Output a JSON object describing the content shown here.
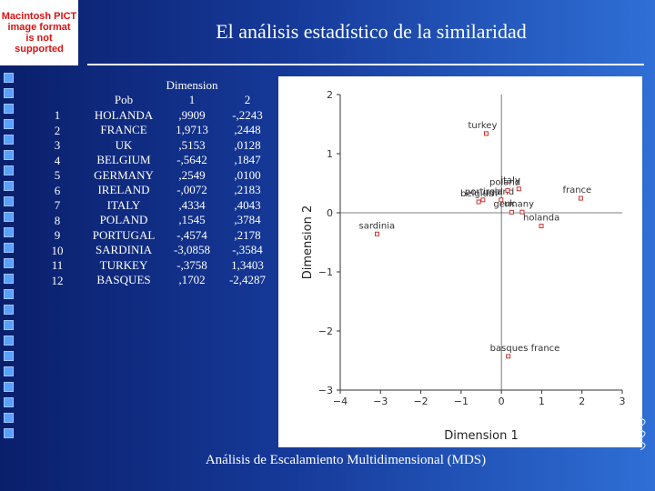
{
  "placeholder": {
    "line1": "Macintosh PICT",
    "line2": "image format",
    "line3": "is not supported"
  },
  "title": "El análisis estadístico de la similaridad",
  "table": {
    "dimension_header": "Dimension",
    "col_pob": "Pob",
    "col_d1": "1",
    "col_d2": "2",
    "rows": [
      {
        "idx": "1",
        "pob": "HOLANDA",
        "d1": ",9909",
        "d2": "-,2243"
      },
      {
        "idx": "2",
        "pob": "FRANCE",
        "d1": "1,9713",
        "d2": ",2448"
      },
      {
        "idx": "3",
        "pob": "UK",
        "d1": ",5153",
        "d2": ",0128"
      },
      {
        "idx": "4",
        "pob": "BELGIUM",
        "d1": "-,5642",
        "d2": ",1847"
      },
      {
        "idx": "5",
        "pob": "GERMANY",
        "d1": ",2549",
        "d2": ",0100"
      },
      {
        "idx": "6",
        "pob": "IRELAND",
        "d1": "-,0072",
        "d2": ",2183"
      },
      {
        "idx": "7",
        "pob": "ITALY",
        "d1": ",4334",
        "d2": ",4043"
      },
      {
        "idx": "8",
        "pob": "POLAND",
        "d1": ",1545",
        "d2": ",3784"
      },
      {
        "idx": "9",
        "pob": "PORTUGAL",
        "d1": "-,4574",
        "d2": ",2178"
      },
      {
        "idx": "10",
        "pob": "SARDINIA",
        "d1": "-3,0858",
        "d2": "-,3584"
      },
      {
        "idx": "11",
        "pob": "TURKEY",
        "d1": "-,3758",
        "d2": "1,3403"
      },
      {
        "idx": "12",
        "pob": "BASQUES",
        "d1": ",1702",
        "d2": "-2,4287"
      }
    ]
  },
  "chart_data": {
    "type": "scatter",
    "xlabel": "Dimension 1",
    "ylabel": "Dimension 2",
    "xlim": [
      -4,
      3
    ],
    "ylim": [
      -3,
      2
    ],
    "xticks": [
      -4,
      -3,
      -2,
      -1,
      0,
      1,
      2,
      3
    ],
    "yticks": [
      -3,
      -2,
      -1,
      0,
      1,
      2
    ],
    "xtick_labels": [
      "−4",
      "−3",
      "−2",
      "−1",
      "0",
      "1",
      "2",
      "3"
    ],
    "ytick_labels": [
      "−3",
      "−2",
      "−1",
      "0",
      "1",
      "2"
    ],
    "points": [
      {
        "label": "holanda",
        "x": 0.9909,
        "y": -0.2243
      },
      {
        "label": "france",
        "x": 1.9713,
        "y": 0.2448
      },
      {
        "label": "uk",
        "x": 0.5153,
        "y": 0.0128
      },
      {
        "label": "belgium",
        "x": -0.5642,
        "y": 0.1847
      },
      {
        "label": "germany",
        "x": 0.2549,
        "y": 0.01
      },
      {
        "label": "ireland",
        "x": -0.0072,
        "y": 0.2183
      },
      {
        "label": "italy",
        "x": 0.4334,
        "y": 0.4043
      },
      {
        "label": "poland",
        "x": 0.1545,
        "y": 0.3784
      },
      {
        "label": "portugal",
        "x": -0.4574,
        "y": 0.2178
      },
      {
        "label": "sardinia",
        "x": -3.0858,
        "y": -0.3584
      },
      {
        "label": "turkey",
        "x": -0.3758,
        "y": 1.3403
      },
      {
        "label": "basques france",
        "x": 0.1702,
        "y": -2.4287
      }
    ]
  },
  "caption": "Análisis de Escalamiento Multidimensional (MDS)"
}
